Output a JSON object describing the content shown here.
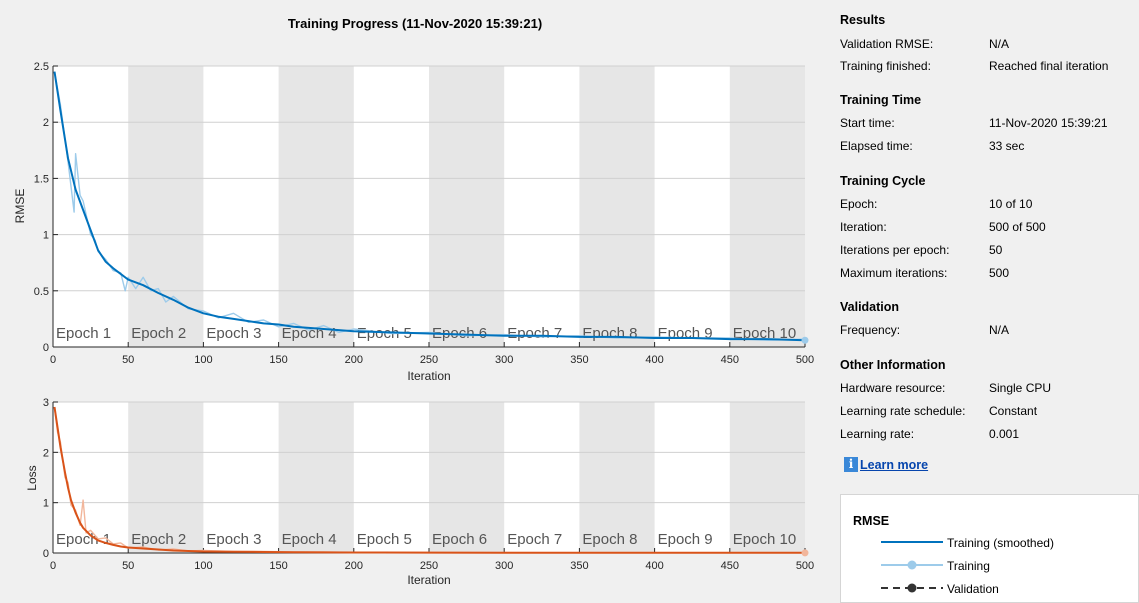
{
  "title": "Training Progress (11-Nov-2020 15:39:21)",
  "colors": {
    "rmse_smoothed": "#0072bd",
    "rmse_raw": "#9dcbea",
    "loss_smoothed": "#d95319",
    "loss_raw": "#f2b69b",
    "epoch_shade": "#e6e6e6",
    "panel_bg": "#f0f0f0"
  },
  "epoch_labels": [
    "Epoch 1",
    "Epoch 2",
    "Epoch 3",
    "Epoch 4",
    "Epoch 5",
    "Epoch 6",
    "Epoch 7",
    "Epoch 8",
    "Epoch 9",
    "Epoch 10"
  ],
  "chart_data": [
    {
      "type": "line",
      "ylabel": "RMSE",
      "xlabel": "Iteration",
      "xlim": [
        0,
        500
      ],
      "ylim": [
        0,
        2.5
      ],
      "xticks": [
        0,
        50,
        100,
        150,
        200,
        250,
        300,
        350,
        400,
        450,
        500
      ],
      "yticks": [
        0,
        0.5,
        1,
        1.5,
        2,
        2.5
      ],
      "ytick_labels": [
        "0",
        "0.5",
        "1",
        "1.5",
        "2",
        "2.5"
      ],
      "grid": true,
      "series": [
        {
          "name": "Training (smoothed)",
          "x": [
            1,
            5,
            10,
            15,
            20,
            25,
            30,
            35,
            40,
            45,
            50,
            60,
            70,
            80,
            90,
            100,
            110,
            120,
            130,
            140,
            150,
            160,
            170,
            180,
            190,
            200,
            225,
            250,
            275,
            300,
            325,
            350,
            375,
            400,
            425,
            450,
            475,
            500
          ],
          "values": [
            2.45,
            2.1,
            1.68,
            1.4,
            1.22,
            1.04,
            0.86,
            0.76,
            0.7,
            0.65,
            0.6,
            0.55,
            0.48,
            0.42,
            0.35,
            0.3,
            0.27,
            0.25,
            0.23,
            0.21,
            0.2,
            0.18,
            0.17,
            0.16,
            0.15,
            0.14,
            0.13,
            0.12,
            0.11,
            0.1,
            0.1,
            0.09,
            0.09,
            0.08,
            0.08,
            0.07,
            0.07,
            0.06
          ]
        },
        {
          "name": "Training",
          "x": [
            1,
            5,
            10,
            14,
            15,
            18,
            20,
            25,
            28,
            30,
            35,
            40,
            45,
            48,
            50,
            55,
            60,
            65,
            70,
            75,
            80,
            90,
            100,
            110,
            120,
            130,
            140,
            150,
            160,
            170,
            180,
            190,
            200,
            225,
            250,
            275,
            300,
            325,
            350,
            375,
            400,
            425,
            450,
            475,
            500
          ],
          "values": [
            2.45,
            2.15,
            1.65,
            1.2,
            1.72,
            1.35,
            1.3,
            1.0,
            0.95,
            0.85,
            0.78,
            0.68,
            0.66,
            0.5,
            0.62,
            0.52,
            0.62,
            0.5,
            0.52,
            0.4,
            0.45,
            0.34,
            0.32,
            0.26,
            0.3,
            0.22,
            0.24,
            0.18,
            0.21,
            0.15,
            0.19,
            0.13,
            0.16,
            0.12,
            0.13,
            0.1,
            0.11,
            0.09,
            0.1,
            0.08,
            0.09,
            0.08,
            0.08,
            0.06,
            0.07
          ]
        }
      ]
    },
    {
      "type": "line",
      "ylabel": "Loss",
      "xlabel": "Iteration",
      "xlim": [
        0,
        500
      ],
      "ylim": [
        0,
        3
      ],
      "xticks": [
        0,
        50,
        100,
        150,
        200,
        250,
        300,
        350,
        400,
        450,
        500
      ],
      "yticks": [
        0,
        1,
        2,
        3
      ],
      "ytick_labels": [
        "0",
        "1",
        "2",
        "3"
      ],
      "grid": true,
      "series": [
        {
          "name": "Training (smoothed)",
          "x": [
            1,
            3,
            5,
            8,
            10,
            12,
            15,
            18,
            20,
            25,
            30,
            35,
            40,
            45,
            50,
            60,
            70,
            80,
            90,
            100,
            120,
            140,
            160,
            180,
            200,
            250,
            300,
            350,
            400,
            450,
            500
          ],
          "values": [
            2.9,
            2.5,
            2.1,
            1.6,
            1.3,
            1.05,
            0.8,
            0.6,
            0.5,
            0.35,
            0.25,
            0.2,
            0.16,
            0.13,
            0.11,
            0.09,
            0.07,
            0.05,
            0.04,
            0.03,
            0.025,
            0.02,
            0.015,
            0.012,
            0.01,
            0.008,
            0.006,
            0.005,
            0.004,
            0.004,
            0.003
          ]
        },
        {
          "name": "Training",
          "x": [
            1,
            3,
            5,
            8,
            10,
            12,
            15,
            18,
            20,
            22,
            25,
            30,
            35,
            40,
            45,
            50,
            60,
            70,
            80,
            90,
            100,
            120,
            140,
            160,
            180,
            200,
            250,
            300,
            350,
            400,
            450,
            500
          ],
          "values": [
            2.9,
            2.4,
            2.2,
            1.5,
            1.4,
            0.95,
            0.85,
            0.55,
            1.05,
            0.4,
            0.45,
            0.28,
            0.3,
            0.18,
            0.2,
            0.1,
            0.12,
            0.06,
            0.08,
            0.04,
            0.05,
            0.03,
            0.03,
            0.02,
            0.02,
            0.01,
            0.01,
            0.008,
            0.006,
            0.005,
            0.005,
            0.004
          ]
        }
      ]
    }
  ],
  "panel": {
    "results": {
      "title": "Results",
      "rows": [
        {
          "label": "Validation RMSE:",
          "value": "N/A"
        },
        {
          "label": "Training finished:",
          "value": "Reached final iteration"
        }
      ]
    },
    "time": {
      "title": "Training Time",
      "rows": [
        {
          "label": "Start time:",
          "value": "11-Nov-2020 15:39:21"
        },
        {
          "label": "Elapsed time:",
          "value": "33 sec"
        }
      ]
    },
    "cycle": {
      "title": "Training Cycle",
      "rows": [
        {
          "label": "Epoch:",
          "value": "10 of 10"
        },
        {
          "label": "Iteration:",
          "value": "500 of 500"
        },
        {
          "label": "Iterations per epoch:",
          "value": "50"
        },
        {
          "label": "Maximum iterations:",
          "value": "500"
        }
      ]
    },
    "validation": {
      "title": "Validation",
      "rows": [
        {
          "label": "Frequency:",
          "value": "N/A"
        }
      ]
    },
    "other": {
      "title": "Other Information",
      "rows": [
        {
          "label": "Hardware resource:",
          "value": "Single CPU"
        },
        {
          "label": "Learning rate schedule:",
          "value": "Constant"
        },
        {
          "label": "Learning rate:",
          "value": "0.001"
        }
      ]
    },
    "learn_more": "Learn more",
    "info_icon": "info-icon",
    "legend": {
      "title": "RMSE",
      "entries": [
        "Training (smoothed)",
        "Training",
        "Validation"
      ]
    }
  }
}
